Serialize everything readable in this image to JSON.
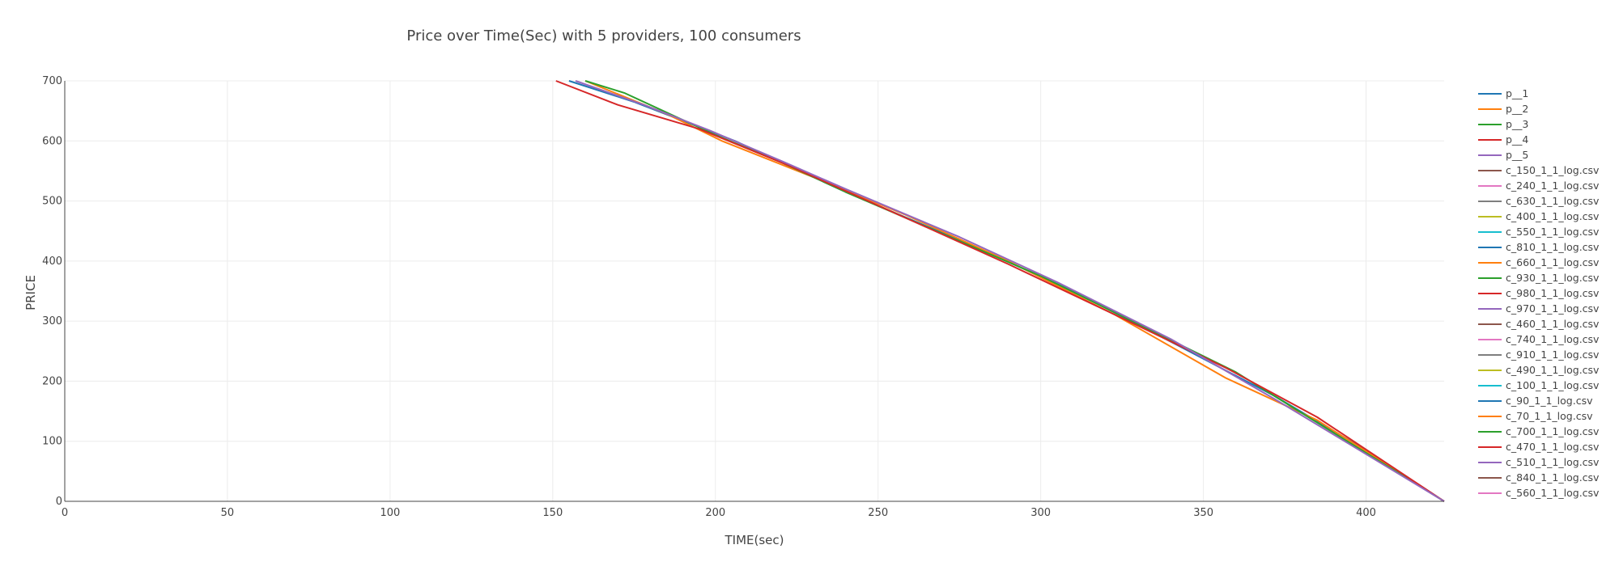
{
  "chart_data": {
    "type": "line",
    "title": "Price over Time(Sec) with 5 providers, 100 consumers",
    "xlabel": "TIME(sec)",
    "ylabel": "PRICE",
    "xlim": [
      0,
      424
    ],
    "ylim": [
      0,
      700
    ],
    "x_ticks": [
      0,
      50,
      100,
      150,
      200,
      250,
      300,
      350,
      400
    ],
    "y_ticks": [
      0,
      100,
      200,
      300,
      400,
      500,
      600,
      700
    ],
    "grid": true,
    "legend_position": "right",
    "series": [
      {
        "name": "p__1",
        "color": "#1f77b4",
        "x": [
          155,
          175,
          206,
          240,
          275,
          310,
          342,
          372,
          400,
          424
        ],
        "y": [
          700,
          665,
          600,
          515,
          435,
          350,
          260,
          175,
          85,
          0
        ]
      },
      {
        "name": "p__2",
        "color": "#ff7f0e",
        "x": [
          160,
          185,
          202,
          230,
          258,
          290,
          323,
          357,
          385,
          424
        ],
        "y": [
          700,
          645,
          600,
          540,
          478,
          400,
          310,
          205,
          135,
          0
        ]
      },
      {
        "name": "p__3",
        "color": "#2ca02c",
        "x": [
          160,
          172,
          188,
          200,
          220,
          240,
          270,
          300,
          330,
          360,
          424
        ],
        "y": [
          700,
          680,
          640,
          610,
          565,
          515,
          445,
          375,
          295,
          215,
          0
        ]
      },
      {
        "name": "p__4",
        "color": "#d62728",
        "x": [
          151,
          170,
          195,
          223,
          256,
          290,
          325,
          357,
          385,
          424
        ],
        "y": [
          700,
          660,
          620,
          558,
          478,
          395,
          305,
          222,
          140,
          0
        ]
      },
      {
        "name": "p__5",
        "color": "#9467bd",
        "x": [
          157,
          178,
          198,
          221,
          240,
          275,
          305,
          340,
          372,
          424
        ],
        "y": [
          700,
          660,
          618,
          565,
          520,
          440,
          365,
          270,
          170,
          0
        ]
      },
      {
        "name": "c_150_1_1_log.csv",
        "color": "#8c564b",
        "x": [],
        "y": []
      },
      {
        "name": "c_240_1_1_log.csv",
        "color": "#e377c2",
        "x": [],
        "y": []
      },
      {
        "name": "c_630_1_1_log.csv",
        "color": "#7f7f7f",
        "x": [],
        "y": []
      },
      {
        "name": "c_400_1_1_log.csv",
        "color": "#bcbd22",
        "x": [],
        "y": []
      },
      {
        "name": "c_550_1_1_log.csv",
        "color": "#17becf",
        "x": [],
        "y": []
      },
      {
        "name": "c_810_1_1_log.csv",
        "color": "#1f77b4",
        "x": [],
        "y": []
      },
      {
        "name": "c_660_1_1_log.csv",
        "color": "#ff7f0e",
        "x": [],
        "y": []
      },
      {
        "name": "c_930_1_1_log.csv",
        "color": "#2ca02c",
        "x": [],
        "y": []
      },
      {
        "name": "c_980_1_1_log.csv",
        "color": "#d62728",
        "x": [],
        "y": []
      },
      {
        "name": "c_970_1_1_log.csv",
        "color": "#9467bd",
        "x": [],
        "y": []
      },
      {
        "name": "c_460_1_1_log.csv",
        "color": "#8c564b",
        "x": [],
        "y": []
      },
      {
        "name": "c_740_1_1_log.csv",
        "color": "#e377c2",
        "x": [],
        "y": []
      },
      {
        "name": "c_910_1_1_log.csv",
        "color": "#7f7f7f",
        "x": [],
        "y": []
      },
      {
        "name": "c_490_1_1_log.csv",
        "color": "#bcbd22",
        "x": [],
        "y": []
      },
      {
        "name": "c_100_1_1_log.csv",
        "color": "#17becf",
        "x": [],
        "y": []
      },
      {
        "name": "c_90_1_1_log.csv",
        "color": "#1f77b4",
        "x": [],
        "y": []
      },
      {
        "name": "c_70_1_1_log.csv",
        "color": "#ff7f0e",
        "x": [],
        "y": []
      },
      {
        "name": "c_700_1_1_log.csv",
        "color": "#2ca02c",
        "x": [],
        "y": []
      },
      {
        "name": "c_470_1_1_log.csv",
        "color": "#d62728",
        "x": [],
        "y": []
      },
      {
        "name": "c_510_1_1_log.csv",
        "color": "#9467bd",
        "x": [],
        "y": []
      },
      {
        "name": "c_840_1_1_log.csv",
        "color": "#8c564b",
        "x": [],
        "y": []
      },
      {
        "name": "c_560_1_1_log.csv",
        "color": "#e377c2",
        "x": [],
        "y": []
      }
    ]
  }
}
